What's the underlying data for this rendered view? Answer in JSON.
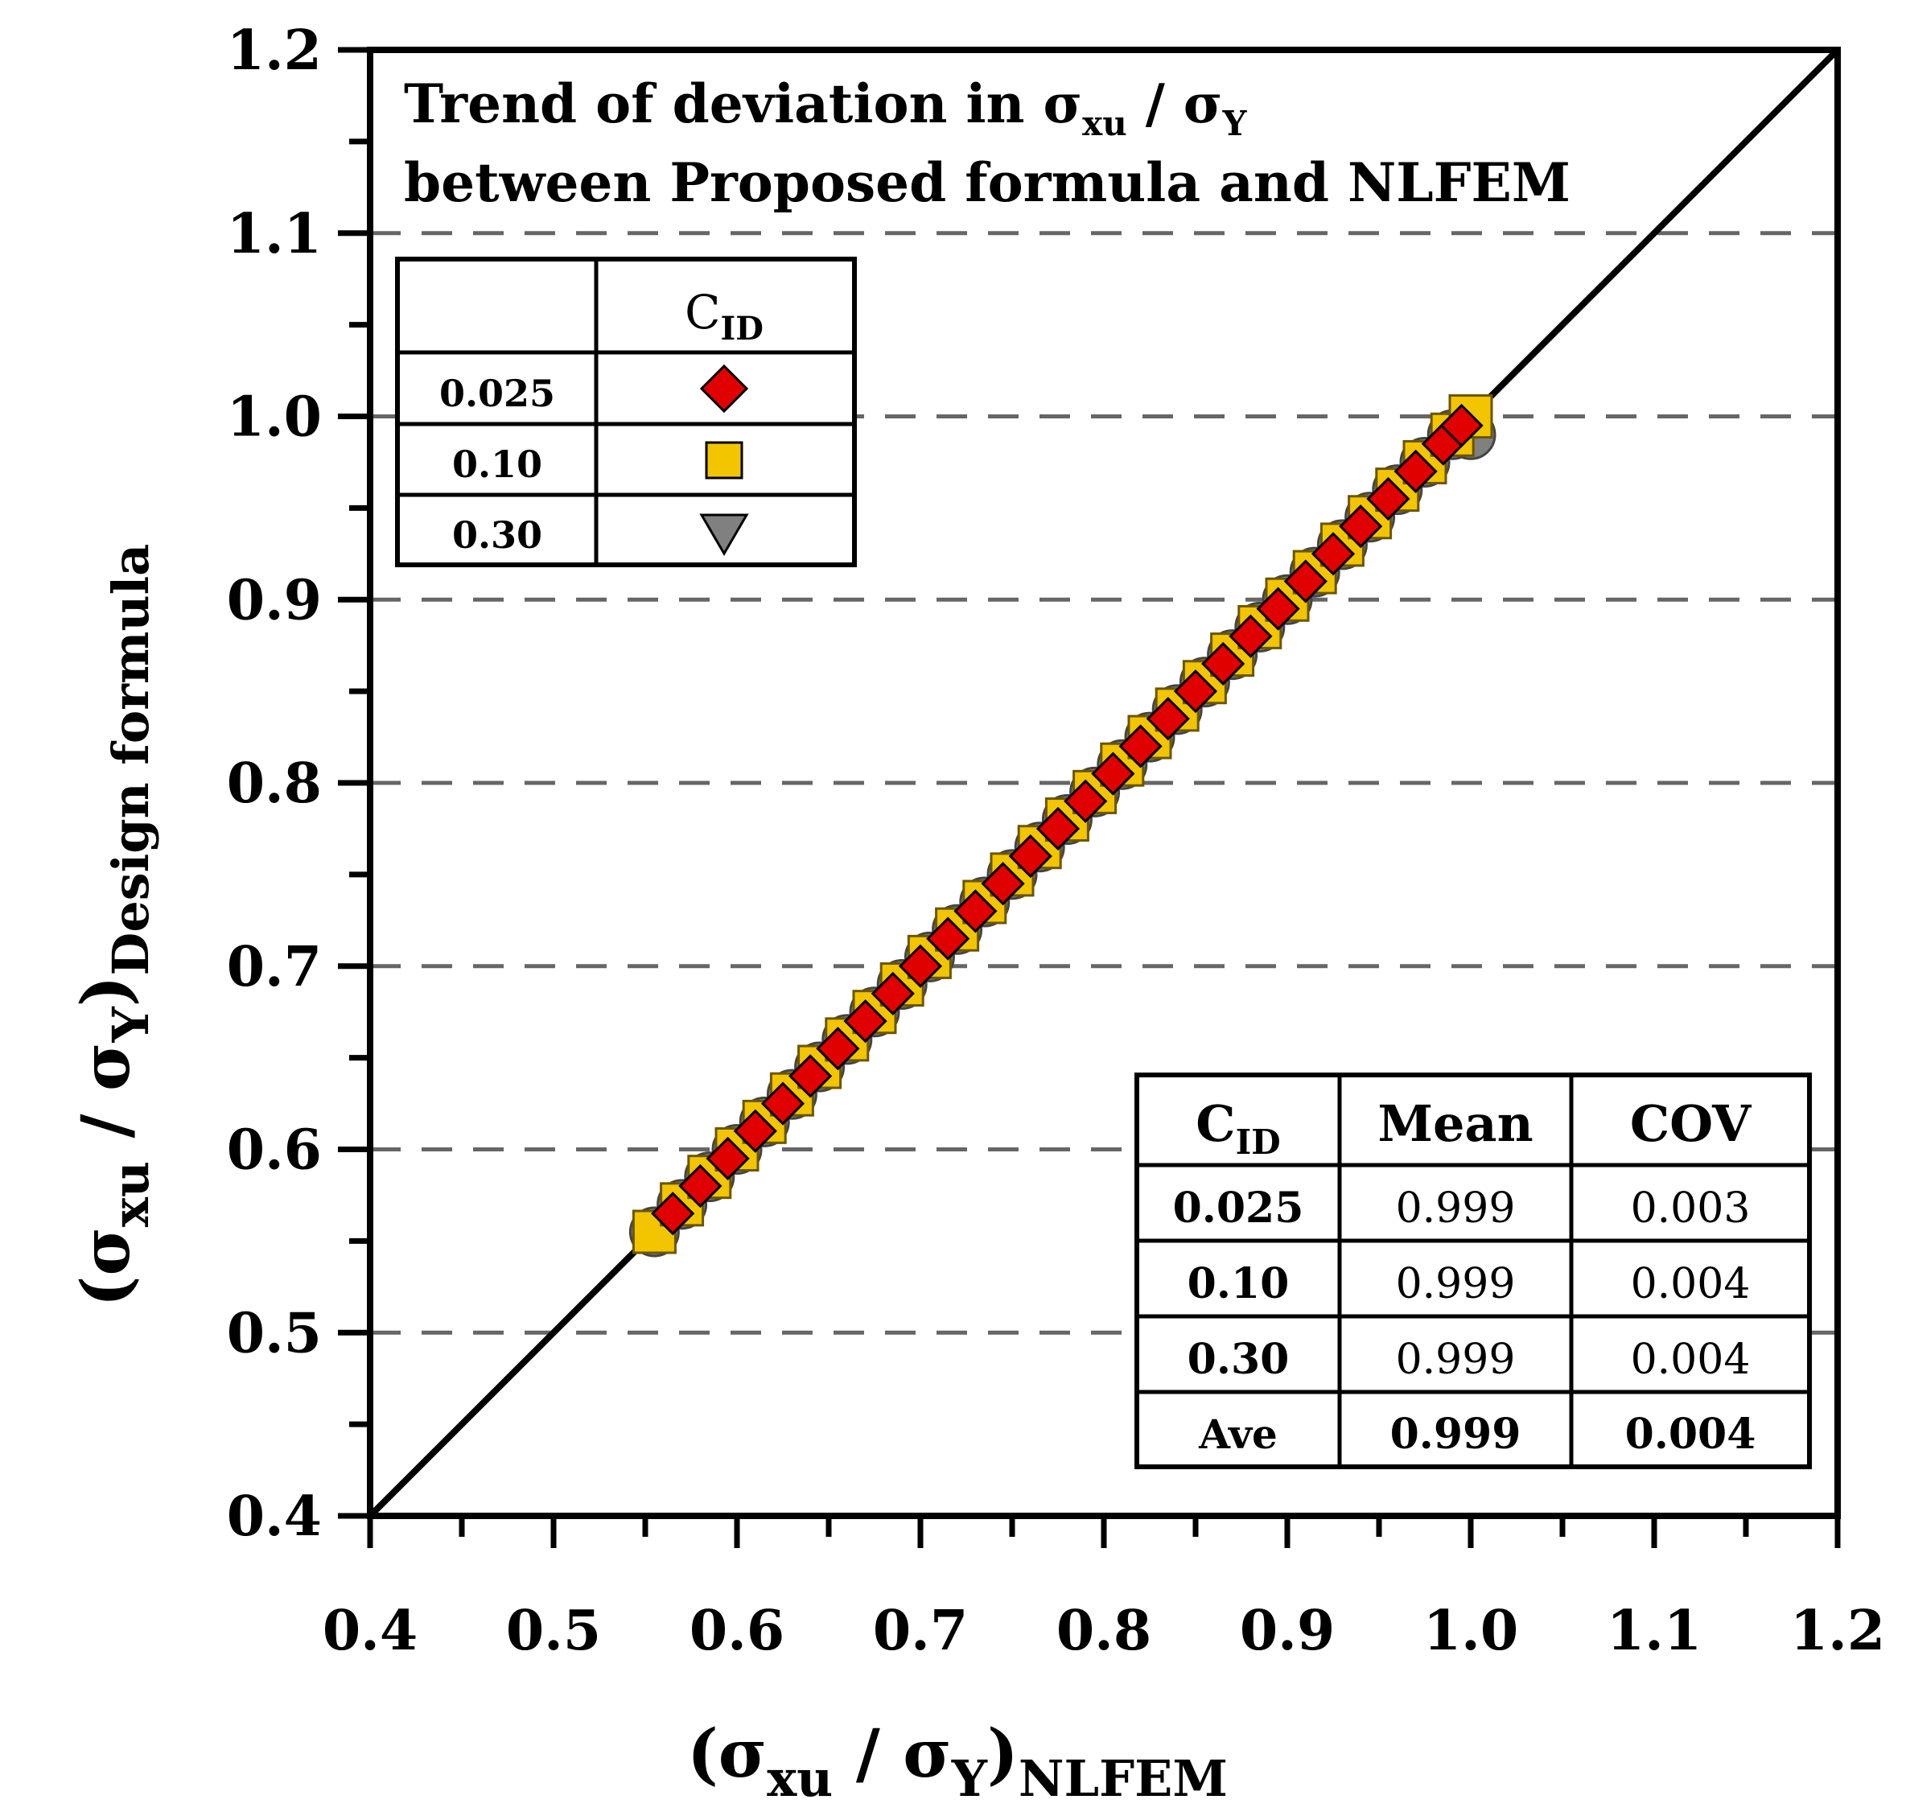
{
  "chart_data": {
    "type": "scatter",
    "title_line1": "Trend of deviation in σ",
    "title_sub1": "xu",
    "title_slash": " / σ",
    "title_sub2": "Y",
    "title_line2": "between Proposed formula and NLFEM",
    "xlabel": {
      "open": "(σ",
      "sub1": "xu",
      "mid": " / σ",
      "sub2": "Y",
      "close": ")",
      "sub3": "NLFEM"
    },
    "ylabel": {
      "open": "(σ",
      "sub1": "xu",
      "mid": " / σ",
      "sub2": "Y",
      "close": ")",
      "sub3": "Design formula"
    },
    "xlim": [
      0.4,
      1.2
    ],
    "ylim": [
      0.4,
      1.2
    ],
    "x_ticks": [
      "0.4",
      "0.5",
      "0.6",
      "0.7",
      "0.8",
      "0.9",
      "1.0",
      "1.1",
      "1.2"
    ],
    "y_ticks": [
      "0.4",
      "0.5",
      "0.6",
      "0.7",
      "0.8",
      "0.9",
      "1.0",
      "1.1",
      "1.2"
    ],
    "grid": "horizontal dashed",
    "reference_line": "y = x",
    "series": [
      {
        "name": "0.30",
        "marker": "triangle-down",
        "color": "#808080",
        "x": [
          0.555,
          0.57,
          0.585,
          0.6,
          0.615,
          0.63,
          0.645,
          0.66,
          0.675,
          0.69,
          0.705,
          0.72,
          0.735,
          0.75,
          0.765,
          0.78,
          0.795,
          0.81,
          0.825,
          0.84,
          0.855,
          0.87,
          0.885,
          0.9,
          0.915,
          0.93,
          0.945,
          0.96,
          0.975,
          0.99,
          1.0
        ],
        "y": [
          0.555,
          0.57,
          0.585,
          0.6,
          0.615,
          0.63,
          0.645,
          0.66,
          0.675,
          0.69,
          0.705,
          0.72,
          0.735,
          0.75,
          0.765,
          0.78,
          0.795,
          0.81,
          0.825,
          0.84,
          0.855,
          0.87,
          0.885,
          0.9,
          0.915,
          0.93,
          0.945,
          0.96,
          0.975,
          0.99,
          0.99
        ]
      },
      {
        "name": "0.10",
        "marker": "square",
        "color": "#F2C500",
        "x": [
          0.555,
          0.57,
          0.585,
          0.6,
          0.615,
          0.63,
          0.645,
          0.66,
          0.675,
          0.69,
          0.705,
          0.72,
          0.735,
          0.75,
          0.765,
          0.78,
          0.795,
          0.81,
          0.825,
          0.84,
          0.855,
          0.87,
          0.885,
          0.9,
          0.915,
          0.93,
          0.945,
          0.96,
          0.975,
          0.99,
          1.0
        ],
        "y": [
          0.555,
          0.57,
          0.585,
          0.6,
          0.615,
          0.63,
          0.645,
          0.66,
          0.675,
          0.69,
          0.705,
          0.72,
          0.735,
          0.75,
          0.765,
          0.78,
          0.795,
          0.81,
          0.825,
          0.84,
          0.855,
          0.87,
          0.885,
          0.9,
          0.915,
          0.93,
          0.945,
          0.96,
          0.975,
          0.99,
          1.0
        ]
      },
      {
        "name": "0.025",
        "marker": "diamond",
        "color": "#E00000",
        "x": [
          0.565,
          0.58,
          0.595,
          0.61,
          0.625,
          0.64,
          0.655,
          0.67,
          0.685,
          0.7,
          0.715,
          0.73,
          0.745,
          0.76,
          0.775,
          0.79,
          0.805,
          0.82,
          0.835,
          0.85,
          0.865,
          0.88,
          0.895,
          0.91,
          0.925,
          0.94,
          0.955,
          0.97,
          0.985,
          0.995
        ],
        "y": [
          0.565,
          0.58,
          0.595,
          0.61,
          0.625,
          0.64,
          0.655,
          0.67,
          0.685,
          0.7,
          0.715,
          0.73,
          0.745,
          0.76,
          0.775,
          0.79,
          0.805,
          0.82,
          0.835,
          0.85,
          0.865,
          0.88,
          0.895,
          0.91,
          0.925,
          0.94,
          0.955,
          0.97,
          0.985,
          0.995
        ]
      }
    ],
    "legend": {
      "position": "top-left",
      "header": "C",
      "header_sub": "ID",
      "rows": [
        "0.025",
        "0.10",
        "0.30"
      ]
    },
    "stats_table": {
      "position": "bottom-right",
      "header": [
        "C",
        "Mean",
        "COV"
      ],
      "header_sub": "ID",
      "rows": [
        {
          "cid": "0.025",
          "mean": "0.999",
          "cov": "0.003"
        },
        {
          "cid": "0.10",
          "mean": "0.999",
          "cov": "0.004"
        },
        {
          "cid": "0.30",
          "mean": "0.999",
          "cov": "0.004"
        }
      ],
      "average": {
        "cid": "Ave",
        "mean": "0.999",
        "cov": "0.004",
        "color": "#FF0000"
      }
    }
  }
}
